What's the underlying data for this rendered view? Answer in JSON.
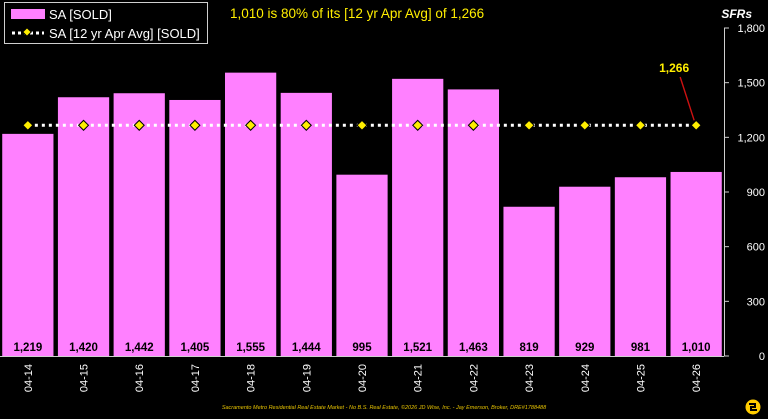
{
  "headline": "1,010 is 80% of its [12 yr Apr Avg] of 1,266",
  "unit_label": "SFRs",
  "footer": "Sacramento Metro Residential Real Estate Market - No B.S. Real Estate, ©2026 JD Wise, Inc. - Jay Emerson, Broker, DRE#1788488",
  "colors": {
    "bar": "#ff80ff",
    "avg_line": "#ffffff",
    "avg_marker": "#ffee00",
    "callout_text": "#ffee00",
    "callout_line": "#cc1111",
    "background": "#000000"
  },
  "chart_data": {
    "type": "bar",
    "categories": [
      "04-14",
      "04-15",
      "04-16",
      "04-17",
      "04-18",
      "04-19",
      "04-20",
      "04-21",
      "04-22",
      "04-23",
      "04-24",
      "04-25",
      "04-26"
    ],
    "series": [
      {
        "name": "SA [SOLD]",
        "type": "bar",
        "values": [
          1219,
          1420,
          1442,
          1405,
          1555,
          1444,
          995,
          1521,
          1463,
          819,
          929,
          981,
          1010
        ],
        "labels": [
          "1,219",
          "1,420",
          "1,442",
          "1,405",
          "1,555",
          "1,444",
          "995",
          "1,521",
          "1,463",
          "819",
          "929",
          "981",
          "1,010"
        ]
      },
      {
        "name": "SA [12 yr Apr Avg] [SOLD]",
        "type": "line",
        "values": [
          1266,
          1266,
          1266,
          1266,
          1266,
          1266,
          1266,
          1266,
          1266,
          1266,
          1266,
          1266,
          1266
        ]
      }
    ],
    "annotation": {
      "text": "1,266",
      "category": "04-26",
      "value": 1266
    },
    "ylim": [
      0,
      1800
    ],
    "yticks": [
      "0",
      "300",
      "600",
      "900",
      "1,200",
      "1,500",
      "1,800"
    ],
    "ytick_values": [
      0,
      300,
      600,
      900,
      1200,
      1500,
      1800
    ],
    "yaxis_side": "right",
    "grid": false,
    "legend_position": "top-left"
  }
}
